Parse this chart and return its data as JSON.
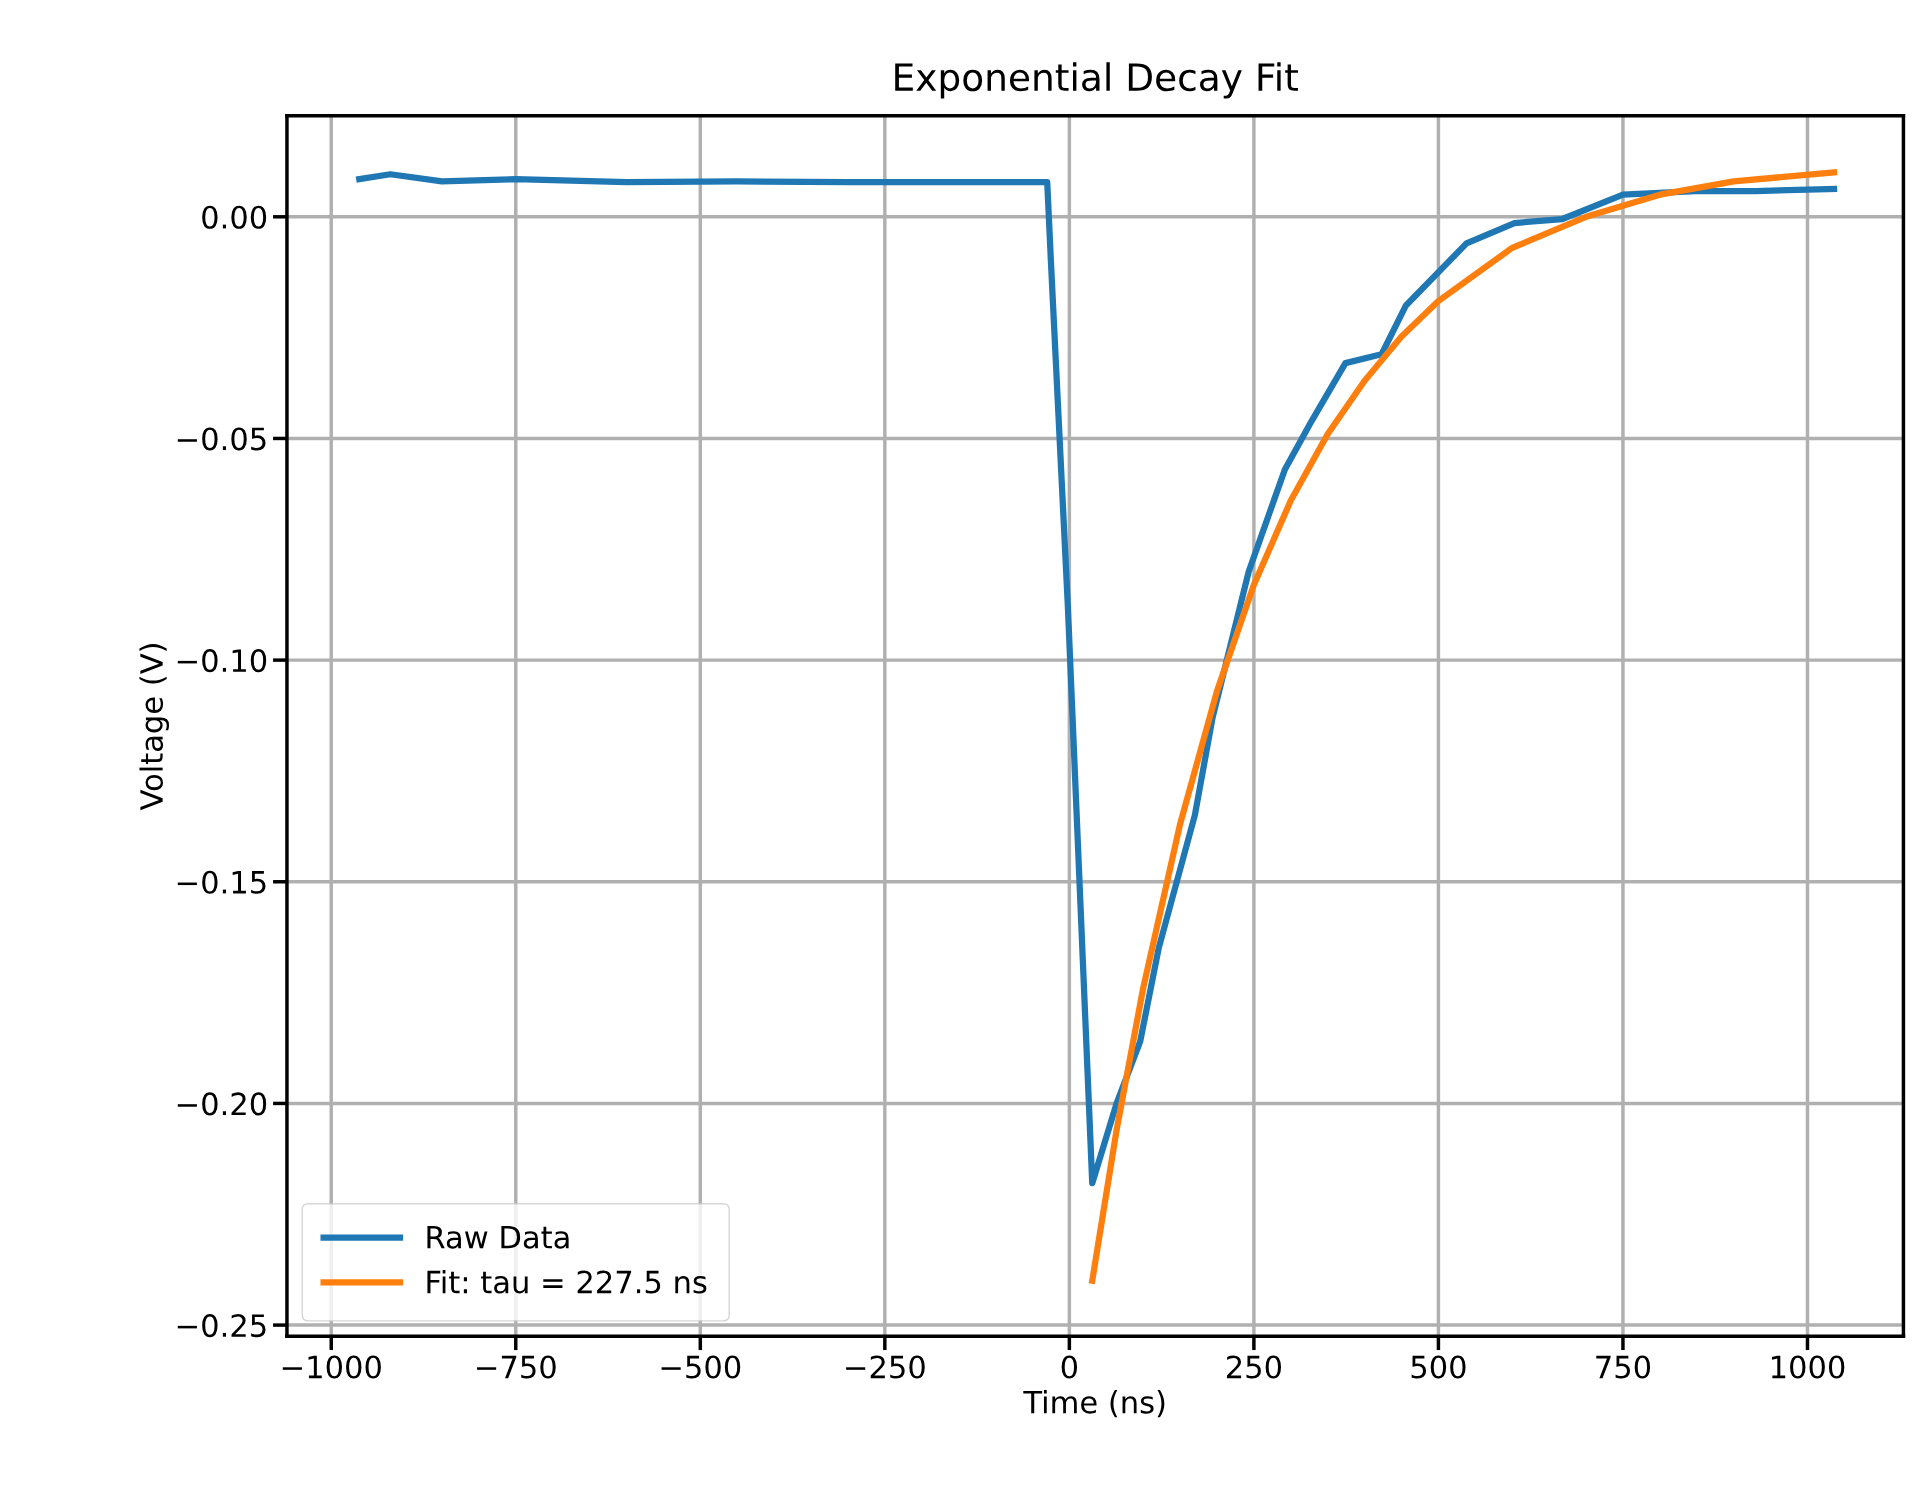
{
  "chart_data": {
    "type": "line",
    "title": "Exponential Decay Fit",
    "xlabel": "Time (ns)",
    "ylabel": "Voltage (V)",
    "series": [
      {
        "name": "Raw Data",
        "color": "#1f77b4",
        "x": [
          -962,
          -920,
          -850,
          -750,
          -600,
          -450,
          -300,
          -150,
          -30,
          -25,
          -2,
          31,
          64,
          96,
          121,
          170,
          194,
          243,
          292,
          325,
          374,
          423,
          456,
          538,
          603,
          668,
          750,
          848,
          930,
          1036
        ],
        "values": [
          0.0085,
          0.0096,
          0.008,
          0.0085,
          0.0078,
          0.008,
          0.0078,
          0.0078,
          0.0078,
          -0.01,
          -0.088,
          -0.218,
          -0.2,
          -0.186,
          -0.165,
          -0.135,
          -0.113,
          -0.08,
          -0.057,
          -0.047,
          -0.033,
          -0.031,
          -0.02,
          -0.006,
          -0.0014,
          -0.0005,
          0.005,
          0.0058,
          0.0058,
          0.0063
        ]
      },
      {
        "name": "Fit: tau = 227.5 ns",
        "color": "#ff7f0e",
        "x": [
          31,
          64,
          100,
          150,
          200,
          250,
          300,
          350,
          400,
          450,
          500,
          600,
          700,
          800,
          900,
          1036
        ],
        "values": [
          -0.24,
          -0.206,
          -0.174,
          -0.137,
          -0.107,
          -0.083,
          -0.064,
          -0.049,
          -0.037,
          -0.027,
          -0.019,
          -0.007,
          0.0,
          0.005,
          0.008,
          0.01
        ]
      }
    ],
    "xlim": [
      -1060,
      1130
    ],
    "ylim": [
      -0.2525,
      0.0228
    ],
    "xticks": [
      {
        "value": -1000,
        "label": "−1000"
      },
      {
        "value": -750,
        "label": "−750"
      },
      {
        "value": -500,
        "label": "−500"
      },
      {
        "value": -250,
        "label": "−250"
      },
      0,
      250,
      500,
      750,
      1000
    ],
    "yticks": [
      {
        "value": -0.25,
        "label": "−0.25"
      },
      {
        "value": -0.2,
        "label": "−0.20"
      },
      {
        "value": -0.15,
        "label": "−0.15"
      },
      {
        "value": -0.1,
        "label": "−0.10"
      },
      {
        "value": -0.05,
        "label": "−0.05"
      },
      {
        "value": 0,
        "label": "0.00"
      }
    ],
    "grid": true,
    "legend": "lower left"
  }
}
